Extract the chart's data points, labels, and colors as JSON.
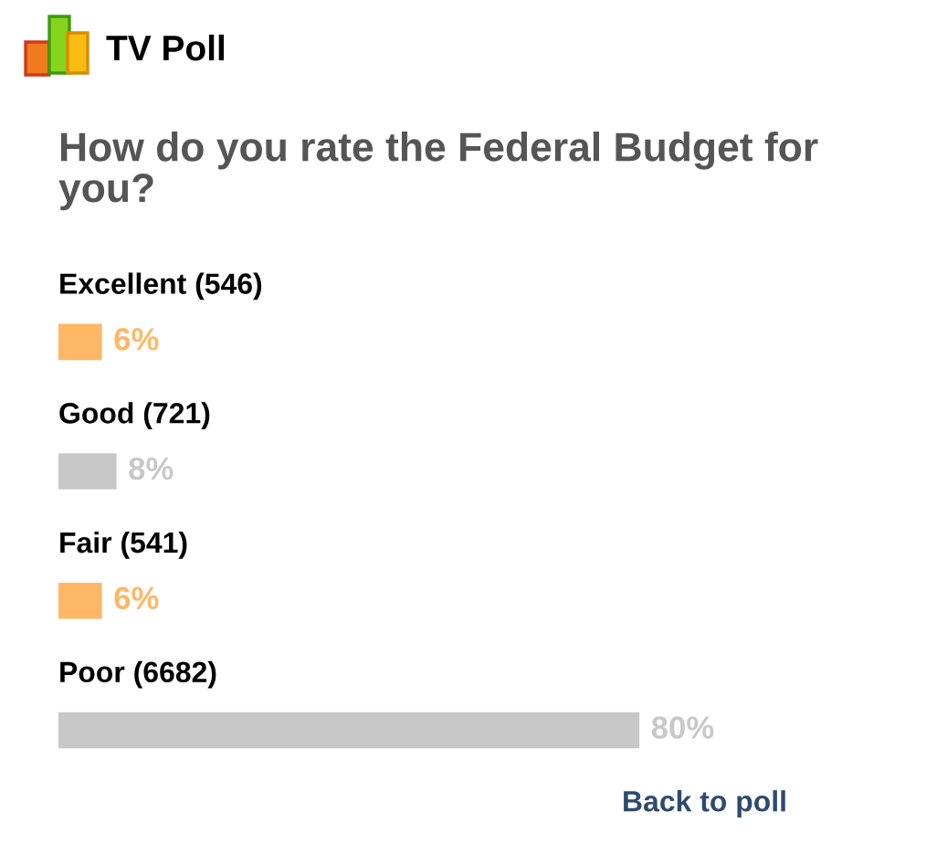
{
  "chart_data": {
    "type": "bar",
    "orientation": "horizontal",
    "title": "TV Poll",
    "subtitle": "How do you rate the Federal Budget for you?",
    "categories": [
      "Excellent (546)",
      "Good (721)",
      "Fair (541)",
      "Poor (6682)"
    ],
    "values": [
      6,
      8,
      6,
      80
    ],
    "colors": [
      "#ffb766",
      "#c8c8c8",
      "#ffb766",
      "#c8c8c8"
    ],
    "value_labels": [
      "6%",
      "8%",
      "6%",
      "80%"
    ],
    "tick_labels": false,
    "annotations": [
      "Back to poll"
    ]
  }
}
